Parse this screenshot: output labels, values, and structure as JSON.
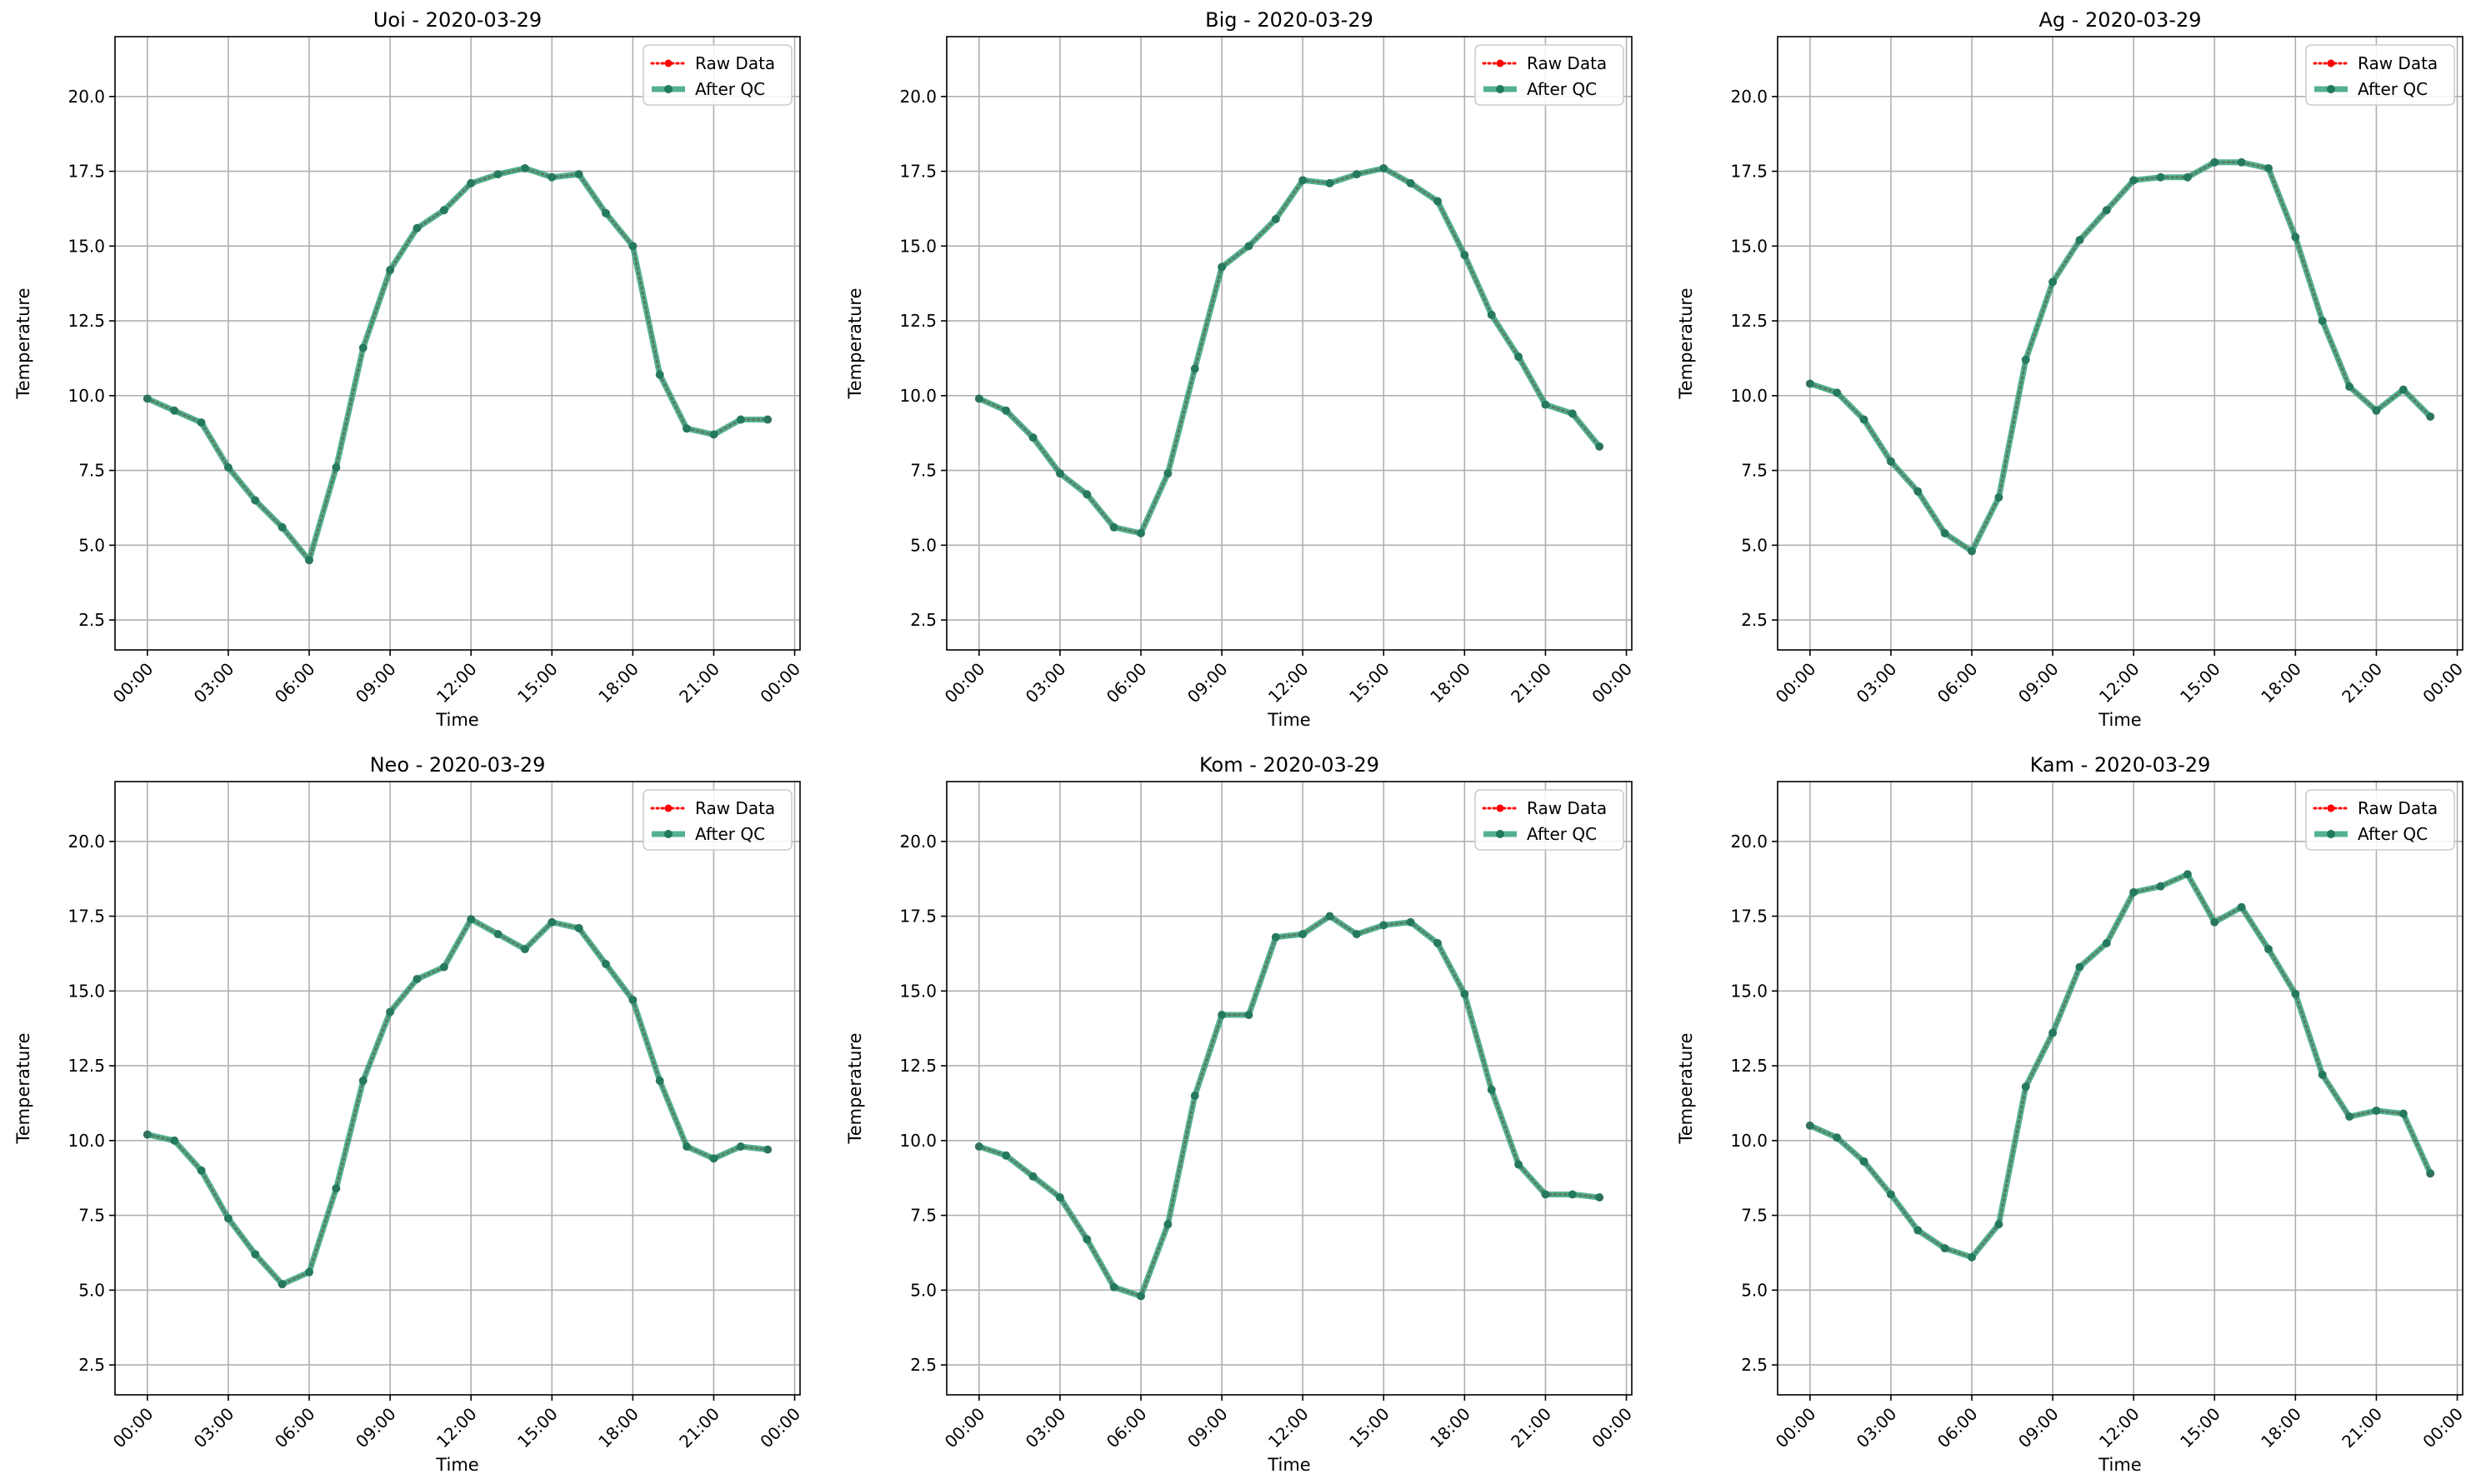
{
  "figure": {
    "legend_raw": "Raw Data",
    "legend_qc": "After QC",
    "xlabel": "Time",
    "ylabel": "Temperature",
    "colors": {
      "raw": "#ff0000",
      "qc": "#2a9d78",
      "qc_marker": "#1f7a5e",
      "grid": "#b0b0b0"
    }
  },
  "chart_data": [
    {
      "type": "line",
      "title": "Uoi - 2020-03-29",
      "xlabel": "Time",
      "ylabel": "Temperature",
      "xlim": [
        -1.2,
        24.2
      ],
      "ylim": [
        1.5,
        22.0
      ],
      "x_ticks": [
        0,
        3,
        6,
        9,
        12,
        15,
        18,
        21,
        24
      ],
      "x_tick_labels": [
        "00:00",
        "03:00",
        "06:00",
        "09:00",
        "12:00",
        "15:00",
        "18:00",
        "21:00",
        "00:00"
      ],
      "y_ticks": [
        2.5,
        5.0,
        7.5,
        10.0,
        12.5,
        15.0,
        17.5,
        20.0
      ],
      "y_tick_labels": [
        "2.5",
        "5.0",
        "7.5",
        "10.0",
        "12.5",
        "15.0",
        "17.5",
        "20.0"
      ],
      "grid": true,
      "legend": "upper right",
      "x": [
        0,
        1,
        2,
        3,
        4,
        5,
        6,
        7,
        8,
        9,
        10,
        11,
        12,
        13,
        14,
        15,
        16,
        17,
        18,
        19,
        20,
        21,
        22,
        23
      ],
      "series": [
        {
          "name": "Raw Data",
          "values": [
            9.9,
            9.5,
            9.1,
            7.6,
            6.5,
            5.6,
            4.5,
            7.6,
            11.6,
            14.2,
            15.6,
            16.2,
            17.1,
            17.4,
            17.6,
            17.3,
            17.4,
            16.1,
            15.0,
            10.7,
            8.9,
            8.7,
            9.2,
            9.2
          ]
        },
        {
          "name": "After QC",
          "values": [
            9.9,
            9.5,
            9.1,
            7.6,
            6.5,
            5.6,
            4.5,
            7.6,
            11.6,
            14.2,
            15.6,
            16.2,
            17.1,
            17.4,
            17.6,
            17.3,
            17.4,
            16.1,
            15.0,
            10.7,
            8.9,
            8.7,
            9.2,
            9.2
          ]
        }
      ]
    },
    {
      "type": "line",
      "title": "Big - 2020-03-29",
      "xlabel": "Time",
      "ylabel": "Temperature",
      "xlim": [
        -1.2,
        24.2
      ],
      "ylim": [
        1.5,
        22.0
      ],
      "x_ticks": [
        0,
        3,
        6,
        9,
        12,
        15,
        18,
        21,
        24
      ],
      "x_tick_labels": [
        "00:00",
        "03:00",
        "06:00",
        "09:00",
        "12:00",
        "15:00",
        "18:00",
        "21:00",
        "00:00"
      ],
      "y_ticks": [
        2.5,
        5.0,
        7.5,
        10.0,
        12.5,
        15.0,
        17.5,
        20.0
      ],
      "y_tick_labels": [
        "2.5",
        "5.0",
        "7.5",
        "10.0",
        "12.5",
        "15.0",
        "17.5",
        "20.0"
      ],
      "grid": true,
      "legend": "upper right",
      "x": [
        0,
        1,
        2,
        3,
        4,
        5,
        6,
        7,
        8,
        9,
        10,
        11,
        12,
        13,
        14,
        15,
        16,
        17,
        18,
        19,
        20,
        21,
        22,
        23
      ],
      "series": [
        {
          "name": "Raw Data",
          "values": [
            9.9,
            9.5,
            8.6,
            7.4,
            6.7,
            5.6,
            5.4,
            7.4,
            10.9,
            14.3,
            15.0,
            15.9,
            17.2,
            17.1,
            17.4,
            17.6,
            17.1,
            16.5,
            14.7,
            12.7,
            11.3,
            9.7,
            9.4,
            8.3
          ]
        },
        {
          "name": "After QC",
          "values": [
            9.9,
            9.5,
            8.6,
            7.4,
            6.7,
            5.6,
            5.4,
            7.4,
            10.9,
            14.3,
            15.0,
            15.9,
            17.2,
            17.1,
            17.4,
            17.6,
            17.1,
            16.5,
            14.7,
            12.7,
            11.3,
            9.7,
            9.4,
            8.3
          ]
        }
      ]
    },
    {
      "type": "line",
      "title": "Ag - 2020-03-29",
      "xlabel": "Time",
      "ylabel": "Temperature",
      "xlim": [
        -1.2,
        24.2
      ],
      "ylim": [
        1.5,
        22.0
      ],
      "x_ticks": [
        0,
        3,
        6,
        9,
        12,
        15,
        18,
        21,
        24
      ],
      "x_tick_labels": [
        "00:00",
        "03:00",
        "06:00",
        "09:00",
        "12:00",
        "15:00",
        "18:00",
        "21:00",
        "00:00"
      ],
      "y_ticks": [
        2.5,
        5.0,
        7.5,
        10.0,
        12.5,
        15.0,
        17.5,
        20.0
      ],
      "y_tick_labels": [
        "2.5",
        "5.0",
        "7.5",
        "10.0",
        "12.5",
        "15.0",
        "17.5",
        "20.0"
      ],
      "grid": true,
      "legend": "upper right",
      "x": [
        0,
        1,
        2,
        3,
        4,
        5,
        6,
        7,
        8,
        9,
        10,
        11,
        12,
        13,
        14,
        15,
        16,
        17,
        18,
        19,
        20,
        21,
        22,
        23
      ],
      "series": [
        {
          "name": "Raw Data",
          "values": [
            10.4,
            10.1,
            9.2,
            7.8,
            6.8,
            5.4,
            4.8,
            6.6,
            11.2,
            13.8,
            15.2,
            16.2,
            17.2,
            17.3,
            17.3,
            17.8,
            17.8,
            17.6,
            15.3,
            12.5,
            10.3,
            9.5,
            10.2,
            9.3
          ]
        },
        {
          "name": "After QC",
          "values": [
            10.4,
            10.1,
            9.2,
            7.8,
            6.8,
            5.4,
            4.8,
            6.6,
            11.2,
            13.8,
            15.2,
            16.2,
            17.2,
            17.3,
            17.3,
            17.8,
            17.8,
            17.6,
            15.3,
            12.5,
            10.3,
            9.5,
            10.2,
            9.3
          ]
        }
      ]
    },
    {
      "type": "line",
      "title": "Neo - 2020-03-29",
      "xlabel": "Time",
      "ylabel": "Temperature",
      "xlim": [
        -1.2,
        24.2
      ],
      "ylim": [
        1.5,
        22.0
      ],
      "x_ticks": [
        0,
        3,
        6,
        9,
        12,
        15,
        18,
        21,
        24
      ],
      "x_tick_labels": [
        "00:00",
        "03:00",
        "06:00",
        "09:00",
        "12:00",
        "15:00",
        "18:00",
        "21:00",
        "00:00"
      ],
      "y_ticks": [
        2.5,
        5.0,
        7.5,
        10.0,
        12.5,
        15.0,
        17.5,
        20.0
      ],
      "y_tick_labels": [
        "2.5",
        "5.0",
        "7.5",
        "10.0",
        "12.5",
        "15.0",
        "17.5",
        "20.0"
      ],
      "grid": true,
      "legend": "upper right",
      "x": [
        0,
        1,
        2,
        3,
        4,
        5,
        6,
        7,
        8,
        9,
        10,
        11,
        12,
        13,
        14,
        15,
        16,
        17,
        18,
        19,
        20,
        21,
        22,
        23
      ],
      "series": [
        {
          "name": "Raw Data",
          "values": [
            10.2,
            10.0,
            9.0,
            7.4,
            6.2,
            5.2,
            5.6,
            8.4,
            12.0,
            14.3,
            15.4,
            15.8,
            17.4,
            16.9,
            16.4,
            17.3,
            17.1,
            15.9,
            14.7,
            12.0,
            9.8,
            9.4,
            9.8,
            9.7
          ]
        },
        {
          "name": "After QC",
          "values": [
            10.2,
            10.0,
            9.0,
            7.4,
            6.2,
            5.2,
            5.6,
            8.4,
            12.0,
            14.3,
            15.4,
            15.8,
            17.4,
            16.9,
            16.4,
            17.3,
            17.1,
            15.9,
            14.7,
            12.0,
            9.8,
            9.4,
            9.8,
            9.7
          ]
        }
      ]
    },
    {
      "type": "line",
      "title": "Kom - 2020-03-29",
      "xlabel": "Time",
      "ylabel": "Temperature",
      "xlim": [
        -1.2,
        24.2
      ],
      "ylim": [
        1.5,
        22.0
      ],
      "x_ticks": [
        0,
        3,
        6,
        9,
        12,
        15,
        18,
        21,
        24
      ],
      "x_tick_labels": [
        "00:00",
        "03:00",
        "06:00",
        "09:00",
        "12:00",
        "15:00",
        "18:00",
        "21:00",
        "00:00"
      ],
      "y_ticks": [
        2.5,
        5.0,
        7.5,
        10.0,
        12.5,
        15.0,
        17.5,
        20.0
      ],
      "y_tick_labels": [
        "2.5",
        "5.0",
        "7.5",
        "10.0",
        "12.5",
        "15.0",
        "17.5",
        "20.0"
      ],
      "grid": true,
      "legend": "upper right",
      "x": [
        0,
        1,
        2,
        3,
        4,
        5,
        6,
        7,
        8,
        9,
        10,
        11,
        12,
        13,
        14,
        15,
        16,
        17,
        18,
        19,
        20,
        21,
        22,
        23
      ],
      "series": [
        {
          "name": "Raw Data",
          "values": [
            9.8,
            9.5,
            8.8,
            8.1,
            6.7,
            5.1,
            4.8,
            7.2,
            11.5,
            14.2,
            14.2,
            16.8,
            16.9,
            17.5,
            16.9,
            17.2,
            17.3,
            16.6,
            14.9,
            11.7,
            9.2,
            8.2,
            8.2,
            8.1
          ]
        },
        {
          "name": "After QC",
          "values": [
            9.8,
            9.5,
            8.8,
            8.1,
            6.7,
            5.1,
            4.8,
            7.2,
            11.5,
            14.2,
            14.2,
            16.8,
            16.9,
            17.5,
            16.9,
            17.2,
            17.3,
            16.6,
            14.9,
            11.7,
            9.2,
            8.2,
            8.2,
            8.1
          ]
        }
      ]
    },
    {
      "type": "line",
      "title": "Kam - 2020-03-29",
      "xlabel": "Time",
      "ylabel": "Temperature",
      "xlim": [
        -1.2,
        24.2
      ],
      "ylim": [
        1.5,
        22.0
      ],
      "x_ticks": [
        0,
        3,
        6,
        9,
        12,
        15,
        18,
        21,
        24
      ],
      "x_tick_labels": [
        "00:00",
        "03:00",
        "06:00",
        "09:00",
        "12:00",
        "15:00",
        "18:00",
        "21:00",
        "00:00"
      ],
      "y_ticks": [
        2.5,
        5.0,
        7.5,
        10.0,
        12.5,
        15.0,
        17.5,
        20.0
      ],
      "y_tick_labels": [
        "2.5",
        "5.0",
        "7.5",
        "10.0",
        "12.5",
        "15.0",
        "17.5",
        "20.0"
      ],
      "grid": true,
      "legend": "upper right",
      "x": [
        0,
        1,
        2,
        3,
        4,
        5,
        6,
        7,
        8,
        9,
        10,
        11,
        12,
        13,
        14,
        15,
        16,
        17,
        18,
        19,
        20,
        21,
        22,
        23
      ],
      "series": [
        {
          "name": "Raw Data",
          "values": [
            10.5,
            10.1,
            9.3,
            8.2,
            7.0,
            6.4,
            6.1,
            7.2,
            11.8,
            13.6,
            15.8,
            16.6,
            18.3,
            18.5,
            18.9,
            17.3,
            17.8,
            16.4,
            14.9,
            12.2,
            10.8,
            11.0,
            10.9,
            8.9
          ]
        },
        {
          "name": "After QC",
          "values": [
            10.5,
            10.1,
            9.3,
            8.2,
            7.0,
            6.4,
            6.1,
            7.2,
            11.8,
            13.6,
            15.8,
            16.6,
            18.3,
            18.5,
            18.9,
            17.3,
            17.8,
            16.4,
            14.9,
            12.2,
            10.8,
            11.0,
            10.9,
            8.9
          ]
        }
      ]
    }
  ]
}
